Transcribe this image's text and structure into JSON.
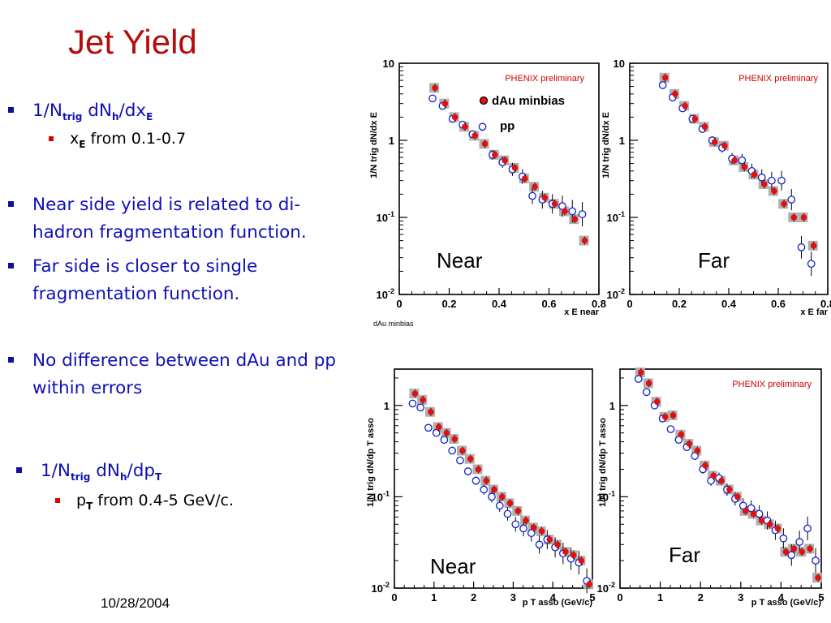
{
  "slide": {
    "title": "Jet Yield",
    "date": "10/28/2004"
  },
  "bullets": [
    {
      "main": "1/N",
      "sub1": "trig",
      "mid": " dN",
      "sub2": "h",
      "mid2": "/dx",
      "sub3": "E"
    },
    {
      "sub_prefix": "x",
      "sub_sub": "E",
      "sub_text": " from 0.1-0.7"
    },
    {
      "text": "Near side yield is related to di-hadron fragmentation function."
    },
    {
      "text": "Far side is closer to single fragmentation function."
    },
    {
      "text": "No difference between dAu and pp within errors"
    },
    {
      "main": "1/N",
      "sub1": "trig",
      "mid": " dN",
      "sub2": "h",
      "mid2": "/dp",
      "sub3": "T"
    },
    {
      "sub_prefix": "p",
      "sub_sub": "T",
      "sub_text": " from 0.4-5 GeV/c."
    }
  ],
  "colors": {
    "dau": "#e01010",
    "pp": "#1020d0",
    "sys": "#b0b0b0",
    "title": "#b40d0d",
    "prelim": "#d00000"
  },
  "chart_data": [
    {
      "type": "scatter",
      "panel": "top-left",
      "ylabel": "1/N trig dN/dx E",
      "xlabel": "x E near",
      "corner_label": "Near",
      "prelim": "PHENIX preliminary",
      "footnote": "dAu minbias",
      "legend": [
        {
          "name": "dAu minbias",
          "marker": "filled-red"
        },
        {
          "name": "pp",
          "marker": "open-blue"
        }
      ],
      "xlim": [
        0,
        0.8
      ],
      "ylim": [
        0.01,
        10
      ],
      "yscale": "log",
      "xticks": [
        "0",
        "0.2",
        "0.4",
        "0.6",
        "0.8"
      ],
      "yticks": [
        {
          "base": "10",
          "exp": "-2"
        },
        {
          "base": "10",
          "exp": "-1"
        },
        {
          "base": "1",
          "exp": ""
        },
        {
          "base": "10",
          "exp": ""
        }
      ],
      "series": [
        {
          "name": "dAu minbias",
          "x": [
            0.14,
            0.18,
            0.22,
            0.26,
            0.3,
            0.34,
            0.38,
            0.42,
            0.46,
            0.5,
            0.54,
            0.58,
            0.62,
            0.66,
            0.7,
            0.74
          ],
          "y": [
            4.8,
            3.0,
            2.0,
            1.5,
            1.15,
            0.9,
            0.65,
            0.55,
            0.44,
            0.32,
            0.25,
            0.18,
            0.15,
            0.12,
            0.095,
            0.05
          ]
        },
        {
          "name": "pp",
          "x": [
            0.14,
            0.18,
            0.22,
            0.26,
            0.3,
            0.34,
            0.38,
            0.42,
            0.46,
            0.5,
            0.54,
            0.58,
            0.62,
            0.66,
            0.7,
            0.74
          ],
          "y": [
            3.5,
            2.8,
            1.9,
            1.6,
            1.2,
            1.5,
            0.65,
            0.52,
            0.42,
            0.34,
            0.19,
            0.17,
            0.15,
            0.14,
            0.12,
            0.11
          ]
        }
      ]
    },
    {
      "type": "scatter",
      "panel": "top-right",
      "ylabel": "1/N trig dN/dx E",
      "xlabel": "x E far",
      "corner_label": "Far",
      "prelim": "PHENIX preliminary",
      "xlim": [
        0,
        0.8
      ],
      "ylim": [
        0.01,
        10
      ],
      "yscale": "log",
      "xticks": [
        "0",
        "0.2",
        "0.4",
        "0.6",
        "0.8"
      ],
      "yticks": [
        {
          "base": "10",
          "exp": "-2"
        },
        {
          "base": "10",
          "exp": "-1"
        },
        {
          "base": "1",
          "exp": ""
        },
        {
          "base": "10",
          "exp": ""
        }
      ],
      "series": [
        {
          "name": "dAu minbias",
          "x": [
            0.14,
            0.18,
            0.22,
            0.26,
            0.3,
            0.34,
            0.38,
            0.42,
            0.46,
            0.5,
            0.54,
            0.58,
            0.62,
            0.66,
            0.7,
            0.74
          ],
          "y": [
            6.5,
            4.0,
            2.8,
            1.9,
            1.5,
            0.95,
            0.85,
            0.55,
            0.45,
            0.36,
            0.27,
            0.22,
            0.15,
            0.1,
            0.1,
            0.043
          ]
        },
        {
          "name": "pp",
          "x": [
            0.14,
            0.18,
            0.22,
            0.26,
            0.3,
            0.34,
            0.38,
            0.42,
            0.46,
            0.5,
            0.54,
            0.58,
            0.62,
            0.66,
            0.7,
            0.74
          ],
          "y": [
            5.2,
            3.6,
            2.6,
            1.9,
            1.4,
            1.0,
            0.8,
            0.58,
            0.55,
            0.4,
            0.33,
            0.3,
            0.3,
            0.17,
            0.041,
            0.025
          ]
        }
      ]
    },
    {
      "type": "scatter",
      "panel": "bottom-left",
      "ylabel": "1/N trig dN/dp T asso",
      "xlabel": "p T asso (GeV/c)",
      "corner_label": "Near",
      "xlim": [
        0,
        5
      ],
      "ylim": [
        0.01,
        2.5
      ],
      "yscale": "log",
      "xticks": [
        "0",
        "1",
        "2",
        "3",
        "4",
        "5"
      ],
      "yticks": [
        {
          "base": "10",
          "exp": "-2"
        },
        {
          "base": "10",
          "exp": "-1"
        },
        {
          "base": "1",
          "exp": ""
        }
      ],
      "series": [
        {
          "name": "dAu minbias",
          "x": [
            0.5,
            0.7,
            0.9,
            1.1,
            1.3,
            1.5,
            1.7,
            1.9,
            2.1,
            2.3,
            2.5,
            2.7,
            2.9,
            3.1,
            3.3,
            3.5,
            3.7,
            3.9,
            4.1,
            4.3,
            4.5,
            4.7,
            4.9
          ],
          "y": [
            1.35,
            1.15,
            0.85,
            0.58,
            0.5,
            0.43,
            0.32,
            0.26,
            0.2,
            0.15,
            0.12,
            0.1,
            0.085,
            0.07,
            0.055,
            0.046,
            0.042,
            0.034,
            0.03,
            0.025,
            0.023,
            0.02,
            0.011
          ]
        },
        {
          "name": "pp",
          "x": [
            0.5,
            0.7,
            0.9,
            1.1,
            1.3,
            1.5,
            1.7,
            1.9,
            2.1,
            2.3,
            2.5,
            2.7,
            2.9,
            3.1,
            3.3,
            3.5,
            3.7,
            3.9,
            4.1,
            4.3,
            4.5,
            4.7,
            4.9
          ],
          "y": [
            1.05,
            0.95,
            0.57,
            0.5,
            0.42,
            0.32,
            0.25,
            0.19,
            0.15,
            0.12,
            0.1,
            0.08,
            0.065,
            0.05,
            0.045,
            0.04,
            0.03,
            0.034,
            0.028,
            0.024,
            0.021,
            0.019,
            0.012
          ]
        }
      ]
    },
    {
      "type": "scatter",
      "panel": "bottom-right",
      "ylabel": "1/N trig dN/dp T asso",
      "xlabel": "p T asso (GeV/c)",
      "corner_label": "Far",
      "prelim": "PHENIX preliminary",
      "xlim": [
        0,
        5
      ],
      "ylim": [
        0.01,
        2.5
      ],
      "yscale": "log",
      "xticks": [
        "0",
        "1",
        "2",
        "3",
        "4",
        "5"
      ],
      "yticks": [
        {
          "base": "10",
          "exp": "-2"
        },
        {
          "base": "10",
          "exp": "-1"
        },
        {
          "base": "1",
          "exp": ""
        }
      ],
      "series": [
        {
          "name": "dAu minbias",
          "x": [
            0.5,
            0.7,
            0.9,
            1.1,
            1.3,
            1.5,
            1.7,
            1.9,
            2.1,
            2.3,
            2.5,
            2.7,
            2.9,
            3.1,
            3.3,
            3.5,
            3.7,
            3.9,
            4.1,
            4.3,
            4.5,
            4.7,
            4.9
          ],
          "y": [
            2.3,
            1.75,
            1.1,
            0.75,
            0.78,
            0.48,
            0.38,
            0.32,
            0.22,
            0.17,
            0.15,
            0.12,
            0.1,
            0.07,
            0.065,
            0.055,
            0.05,
            0.045,
            0.025,
            0.027,
            0.025,
            0.027,
            0.013
          ]
        },
        {
          "name": "pp",
          "x": [
            0.5,
            0.7,
            0.9,
            1.1,
            1.3,
            1.5,
            1.7,
            1.9,
            2.1,
            2.3,
            2.5,
            2.7,
            2.9,
            3.1,
            3.3,
            3.5,
            3.7,
            3.9,
            4.1,
            4.3,
            4.5,
            4.7,
            4.9
          ],
          "y": [
            1.95,
            1.4,
            1.0,
            0.72,
            0.55,
            0.42,
            0.35,
            0.28,
            0.2,
            0.15,
            0.16,
            0.12,
            0.095,
            0.08,
            0.075,
            0.065,
            0.055,
            0.043,
            0.035,
            0.023,
            0.032,
            0.045,
            0.02
          ]
        }
      ]
    }
  ]
}
